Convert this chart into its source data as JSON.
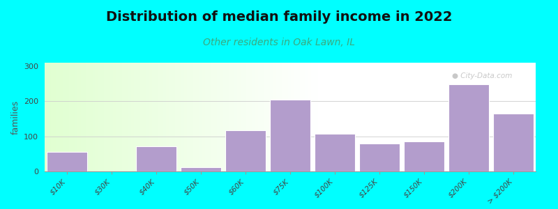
{
  "title": "Distribution of median family income in 2022",
  "subtitle": "Other residents in Oak Lawn, IL",
  "ylabel": "families",
  "categories": [
    "$10K",
    "$30K",
    "$40K",
    "$50K",
    "$60K",
    "$75K",
    "$100K",
    "$125K",
    "$150K",
    "$200K",
    "> $200K"
  ],
  "values": [
    55,
    0,
    72,
    12,
    118,
    205,
    108,
    80,
    85,
    248,
    165
  ],
  "bar_color": "#b39dcc",
  "bar_edge_color": "#ffffff",
  "background_outer": "#00ffff",
  "title_fontsize": 14,
  "title_color": "#111111",
  "subtitle_fontsize": 10,
  "subtitle_color": "#3aaa80",
  "ylabel_fontsize": 9,
  "tick_fontsize": 7.5,
  "yticks": [
    0,
    100,
    200,
    300
  ],
  "ylim": [
    0,
    310
  ],
  "watermark_text": "● City-Data.com",
  "watermark_color": "#bbbbbb"
}
